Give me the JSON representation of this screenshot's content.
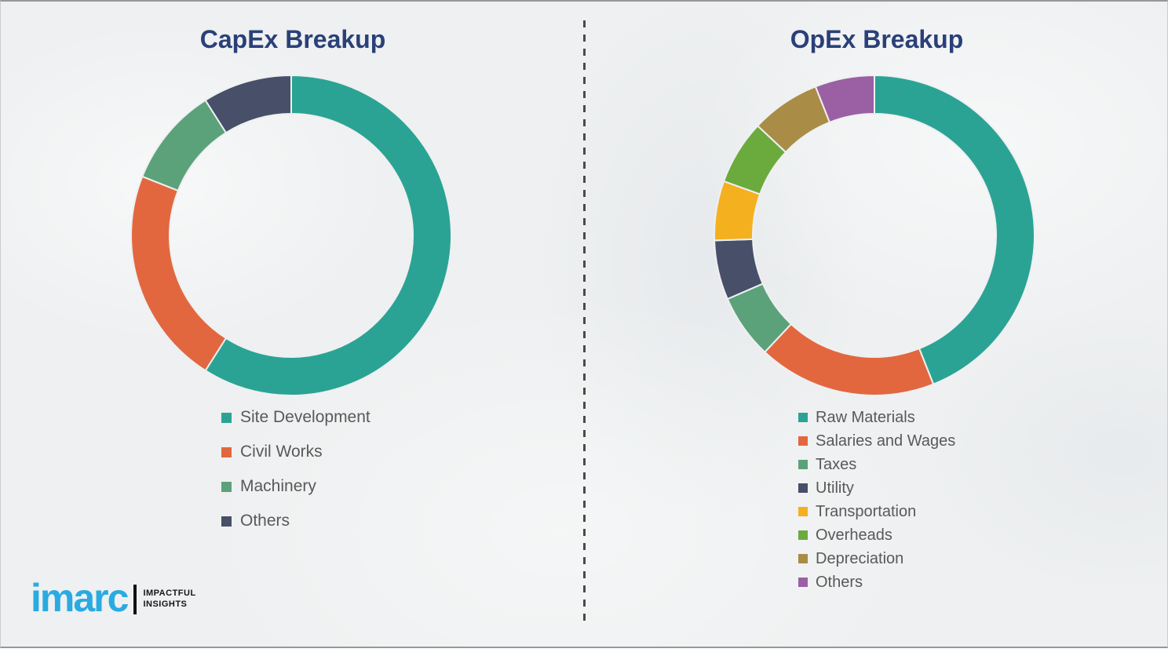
{
  "chart_data": [
    {
      "type": "pie",
      "subtype": "donut",
      "title": "CapEx Breakup",
      "direction": "clockwise",
      "start_angle_deg": 0,
      "inner_radius_ratio": 0.76,
      "legend_position": "below-left",
      "values_are": "estimated percent share",
      "segments": [
        {
          "label": "Site Development",
          "value": 59,
          "color": "#2BA394"
        },
        {
          "label": "Civil Works",
          "value": 22,
          "color": "#E2673F"
        },
        {
          "label": "Machinery",
          "value": 10,
          "color": "#5BA27A"
        },
        {
          "label": "Others",
          "value": 9,
          "color": "#474F69"
        }
      ]
    },
    {
      "type": "pie",
      "subtype": "donut",
      "title": "OpEx Breakup",
      "direction": "clockwise",
      "start_angle_deg": 0,
      "inner_radius_ratio": 0.76,
      "legend_position": "below-left",
      "values_are": "estimated percent share",
      "segments": [
        {
          "label": "Raw Materials",
          "value": 44,
          "color": "#2BA394"
        },
        {
          "label": "Salaries and Wages",
          "value": 18,
          "color": "#E2673F"
        },
        {
          "label": "Taxes",
          "value": 6.5,
          "color": "#5BA27A"
        },
        {
          "label": "Utility",
          "value": 6,
          "color": "#474F69"
        },
        {
          "label": "Transportation",
          "value": 6,
          "color": "#F4B01F"
        },
        {
          "label": "Overheads",
          "value": 6.5,
          "color": "#6BAA3D"
        },
        {
          "label": "Depreciation",
          "value": 7,
          "color": "#A98C45"
        },
        {
          "label": "Others",
          "value": 6,
          "color": "#9B60A3"
        }
      ]
    }
  ],
  "logo": {
    "brand": "imarc",
    "tagline_line1": "IMPACTFUL",
    "tagline_line2": "INSIGHTS",
    "brand_color": "#29ABE2"
  },
  "style": {
    "title_color": "#2A4078",
    "legend_text_color": "#595959",
    "divider_color": "#4A4A4A",
    "background_color": "#EEF0F1"
  }
}
